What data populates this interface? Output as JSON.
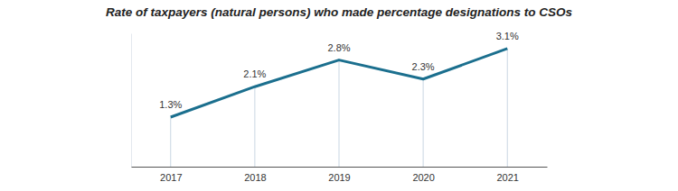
{
  "chart_data": {
    "type": "line",
    "title": "Rate of taxpayers (natural persons) who made percentage designations to CSOs",
    "categories": [
      "2017",
      "2018",
      "2019",
      "2020",
      "2021"
    ],
    "values": [
      1.3,
      2.1,
      2.8,
      2.3,
      3.1
    ],
    "value_labels": [
      "1.3%",
      "2.1%",
      "2.8%",
      "2.3%",
      "3.1%"
    ],
    "color": "#1b6f8e",
    "ylim": [
      0,
      3.5
    ],
    "yticks": [],
    "data_labels": true,
    "tick_labels": "x"
  }
}
